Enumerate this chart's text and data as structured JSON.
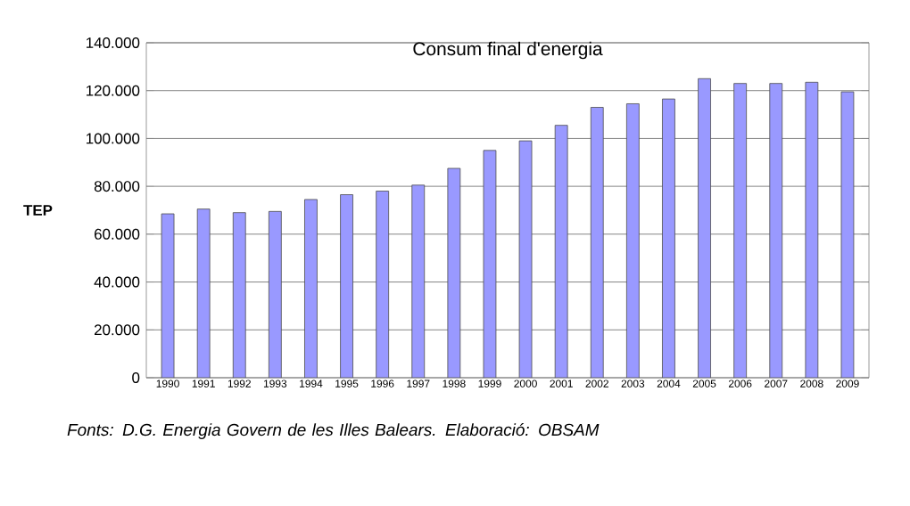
{
  "chart_data": {
    "type": "bar",
    "title": "Consum final d'energia",
    "ylabel": "TEP",
    "categories": [
      "1990",
      "1991",
      "1992",
      "1993",
      "1994",
      "1995",
      "1996",
      "1997",
      "1998",
      "1999",
      "2000",
      "2001",
      "2002",
      "2003",
      "2004",
      "2005",
      "2006",
      "2007",
      "2008",
      "2009"
    ],
    "values": [
      68500,
      70500,
      69000,
      69500,
      74500,
      76500,
      78000,
      80500,
      87500,
      95000,
      99000,
      105500,
      113000,
      114500,
      116500,
      125000,
      123000,
      123000,
      123500,
      119500
    ],
    "color": "#9999ff",
    "ylim": [
      0,
      140000
    ],
    "yticks": [
      {
        "value": 0,
        "label": "0"
      },
      {
        "value": 20000,
        "label": "20.000"
      },
      {
        "value": 40000,
        "label": "40.000"
      },
      {
        "value": 60000,
        "label": "60.000"
      },
      {
        "value": 80000,
        "label": "80.000"
      },
      {
        "value": 100000,
        "label": "100.000"
      },
      {
        "value": 120000,
        "label": "120.000"
      },
      {
        "value": 140000,
        "label": "140.000"
      }
    ],
    "grid": "y",
    "annotations": [
      "Fonts: D.G. Energia Govern de les Illes Balears. Elaboració: OBSAM"
    ]
  }
}
